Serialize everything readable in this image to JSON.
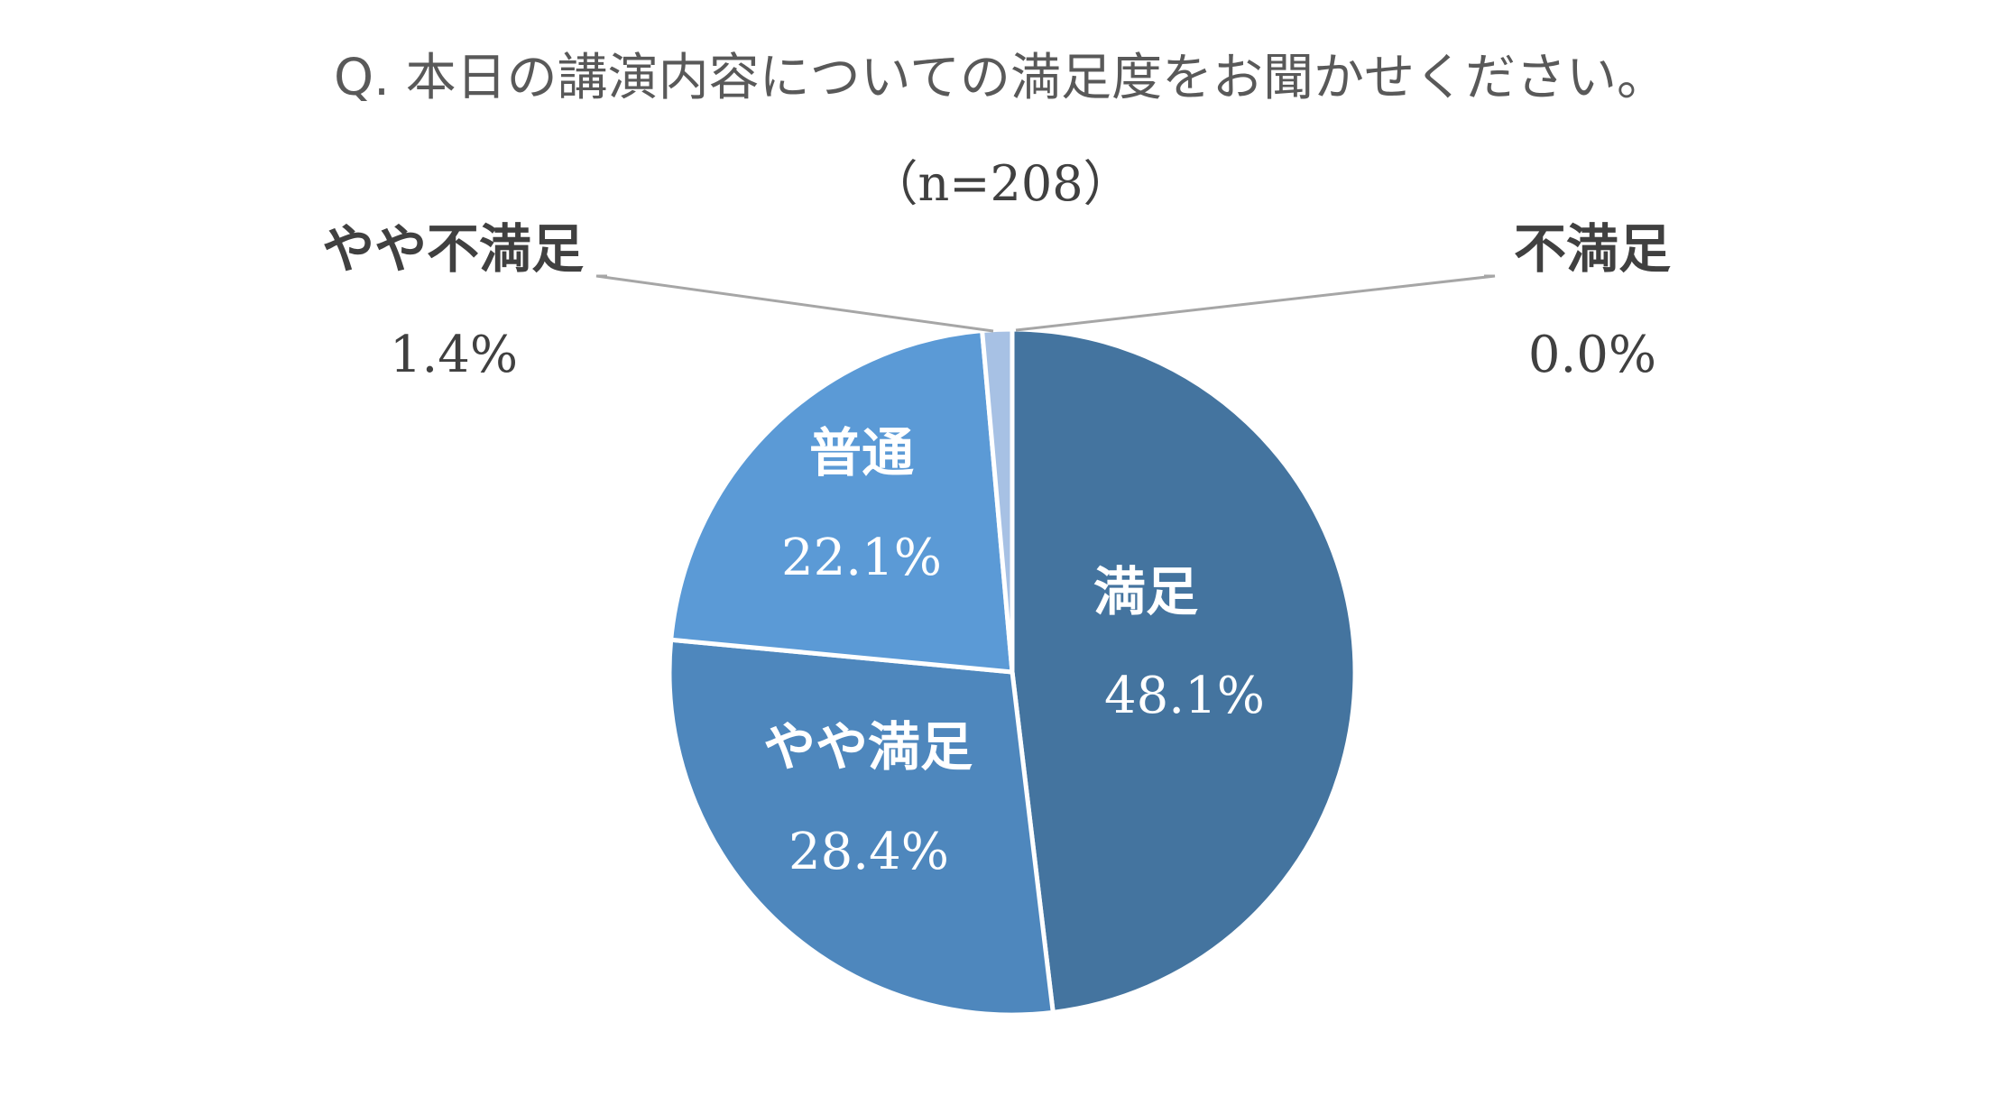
{
  "chart_data": {
    "type": "pie",
    "title": "Q. 本日の講演内容についての満足度をお聞かせください。",
    "subtitle": "（n=208）",
    "categories": [
      "満足",
      "やや満足",
      "普通",
      "やや不満足",
      "不満足"
    ],
    "values": [
      48.1,
      28.4,
      22.1,
      1.4,
      0.0
    ],
    "value_labels": [
      "48.1%",
      "28.4%",
      "22.1%",
      "1.4%",
      "0.0%"
    ],
    "colors": [
      "#44749F",
      "#4E87BD",
      "#5B9AD6",
      "#A7C1E4",
      "#C7D7EE"
    ],
    "start_angle_deg": 0,
    "direction": "clockwise",
    "legend": "none"
  }
}
